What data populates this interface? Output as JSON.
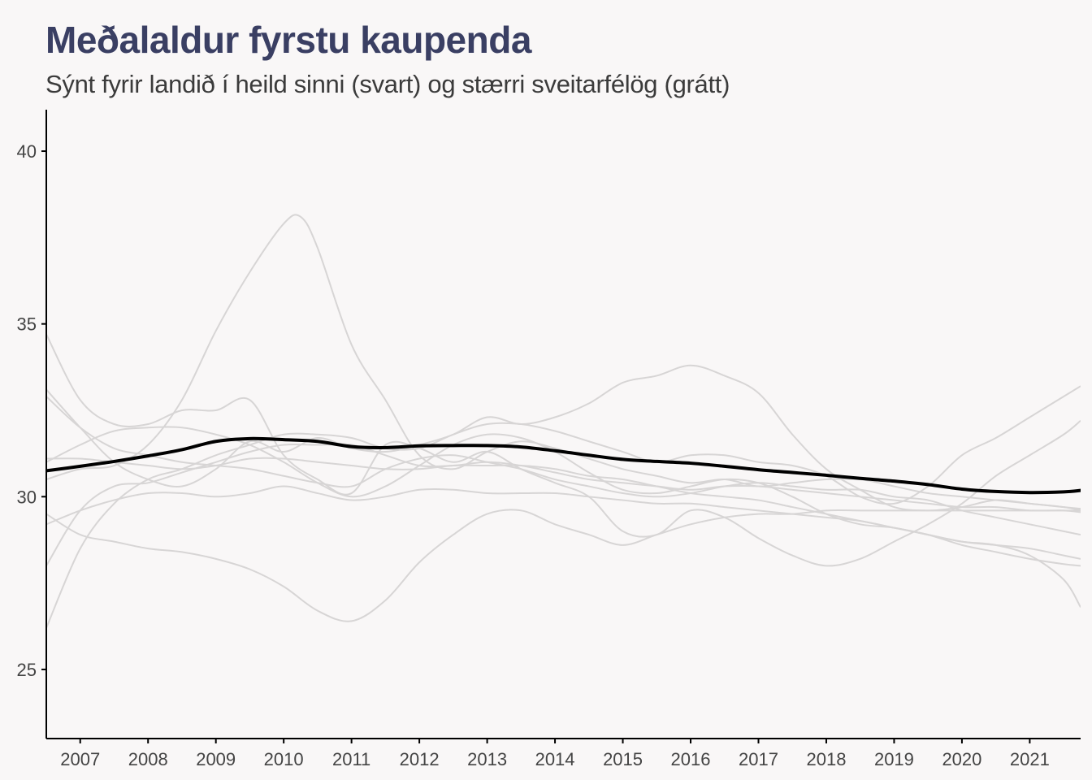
{
  "chart_data": {
    "type": "line",
    "title": "Meðalaldur fyrstu kaupenda",
    "subtitle": "Sýnt fyrir landið í heild sinni (svart) og stærri sveitarfélög (grátt)",
    "xlabel": "",
    "ylabel": "",
    "xlim": [
      2006.5,
      2021.75
    ],
    "ylim": [
      23,
      41.2
    ],
    "x_ticks": [
      "2007",
      "2008",
      "2009",
      "2010",
      "2011",
      "2012",
      "2013",
      "2014",
      "2015",
      "2016",
      "2017",
      "2018",
      "2019",
      "2020",
      "2021"
    ],
    "y_ticks": [
      "25",
      "30",
      "35",
      "40"
    ],
    "grid": false,
    "legend": "none",
    "colors": {
      "national": "#000000",
      "municipality": "#d7d5d5",
      "title": "#3a3f63",
      "background": "#f9f7f7"
    },
    "national": {
      "x": [
        2006.5,
        2007,
        2007.5,
        2008,
        2008.5,
        2009,
        2009.5,
        2010,
        2010.5,
        2011,
        2011.5,
        2012,
        2012.5,
        2013,
        2013.5,
        2014,
        2014.5,
        2015,
        2015.5,
        2016,
        2016.5,
        2017,
        2017.5,
        2018,
        2018.5,
        2019,
        2019.5,
        2020,
        2020.5,
        2021,
        2021.5,
        2021.75
      ],
      "y": [
        30.75,
        30.88,
        31.02,
        31.18,
        31.36,
        31.6,
        31.68,
        31.65,
        31.6,
        31.45,
        31.42,
        31.47,
        31.48,
        31.48,
        31.44,
        31.33,
        31.2,
        31.08,
        31.02,
        30.97,
        30.88,
        30.78,
        30.7,
        30.62,
        30.53,
        30.45,
        30.35,
        30.22,
        30.15,
        30.12,
        30.14,
        30.18
      ]
    },
    "municipalities": [
      {
        "x": [
          2006.5,
          2007,
          2007.5,
          2008,
          2008.5,
          2009,
          2009.5,
          2010,
          2010.25,
          2010.5,
          2011,
          2011.5,
          2012,
          2012.5,
          2013,
          2013.5,
          2014,
          2014.5,
          2015,
          2015.5,
          2016,
          2016.5,
          2017,
          2017.5,
          2018,
          2018.5,
          2019,
          2019.5,
          2020,
          2020.5,
          2021,
          2021.5,
          2021.75
        ],
        "y": [
          30.5,
          30.8,
          30.9,
          31.5,
          32.8,
          34.8,
          36.5,
          37.9,
          38.1,
          37.2,
          34.4,
          32.8,
          31.2,
          30.8,
          31.3,
          31.6,
          31.4,
          31.1,
          30.8,
          30.6,
          30.4,
          30.5,
          30.3,
          30.4,
          30.5,
          30.5,
          30.3,
          30.1,
          30.0,
          29.9,
          29.8,
          29.7,
          29.65
        ]
      },
      {
        "x": [
          2006.5,
          2007,
          2007.5,
          2008,
          2008.5,
          2009,
          2009.5,
          2010,
          2010.5,
          2011,
          2011.5,
          2012,
          2012.5,
          2013,
          2013.5,
          2014,
          2014.5,
          2015,
          2015.5,
          2016,
          2016.5,
          2017,
          2017.5,
          2018,
          2018.5,
          2019,
          2019.5,
          2020,
          2020.5,
          2021,
          2021.5,
          2021.75
        ],
        "y": [
          34.7,
          32.8,
          32.1,
          32.1,
          32.5,
          32.5,
          32.8,
          31.2,
          30.5,
          30.1,
          31.5,
          31.4,
          31.0,
          31.3,
          30.8,
          30.4,
          30.0,
          29.0,
          28.9,
          29.6,
          29.4,
          28.8,
          28.3,
          28.0,
          28.2,
          28.7,
          29.2,
          29.8,
          30.6,
          31.2,
          31.8,
          32.2
        ]
      },
      {
        "x": [
          2006.5,
          2007,
          2007.5,
          2008,
          2008.5,
          2009,
          2009.5,
          2010,
          2010.5,
          2011,
          2011.5,
          2012,
          2012.5,
          2013,
          2013.5,
          2014,
          2014.5,
          2015,
          2015.5,
          2016,
          2016.5,
          2017,
          2017.5,
          2018,
          2018.5,
          2019,
          2019.5,
          2020,
          2020.5,
          2021,
          2021.5,
          2021.75
        ],
        "y": [
          26.2,
          28.5,
          29.8,
          30.5,
          30.8,
          31.2,
          31.5,
          31.8,
          31.8,
          31.7,
          31.4,
          31.4,
          31.8,
          32.1,
          32.1,
          31.9,
          31.6,
          31.3,
          31.0,
          31.2,
          31.2,
          31.0,
          30.9,
          30.6,
          30.0,
          29.8,
          30.3,
          31.2,
          31.7,
          32.3,
          32.9,
          33.2
        ]
      },
      {
        "x": [
          2006.5,
          2007,
          2007.5,
          2008,
          2008.5,
          2009,
          2009.5,
          2010,
          2010.5,
          2011,
          2011.5,
          2012,
          2012.5,
          2013,
          2013.5,
          2014,
          2014.5,
          2015,
          2015.5,
          2016,
          2016.5,
          2017,
          2017.5,
          2018,
          2018.5,
          2019,
          2019.5,
          2020,
          2020.5,
          2021,
          2021.5,
          2021.75
        ],
        "y": [
          33.1,
          32.0,
          31.0,
          30.5,
          30.3,
          30.8,
          31.6,
          31.3,
          31.7,
          31.4,
          31.3,
          31.5,
          31.8,
          32.3,
          32.1,
          32.3,
          32.7,
          33.3,
          33.5,
          33.8,
          33.5,
          33.0,
          31.8,
          30.8,
          30.2,
          29.7,
          29.6,
          29.7,
          29.9,
          29.8,
          29.7,
          29.6
        ]
      },
      {
        "x": [
          2006.5,
          2007,
          2007.5,
          2008,
          2008.5,
          2009,
          2009.5,
          2010,
          2010.5,
          2011,
          2011.5,
          2012,
          2012.5,
          2013,
          2013.5,
          2014,
          2014.5,
          2015,
          2015.5,
          2016,
          2016.5,
          2017,
          2017.5,
          2018,
          2018.5,
          2019,
          2019.5,
          2020,
          2020.5,
          2021,
          2021.5,
          2021.75
        ],
        "y": [
          28.0,
          29.6,
          30.3,
          30.4,
          30.7,
          31.0,
          31.3,
          31.5,
          31.5,
          31.5,
          31.2,
          30.9,
          30.9,
          31.0,
          30.9,
          30.7,
          30.5,
          30.4,
          30.3,
          30.2,
          30.3,
          30.3,
          30.2,
          30.1,
          30.0,
          29.9,
          29.8,
          29.7,
          29.7,
          29.6,
          29.6,
          29.55
        ]
      },
      {
        "x": [
          2006.5,
          2007,
          2007.5,
          2008,
          2008.5,
          2009,
          2009.5,
          2010,
          2010.5,
          2011,
          2011.5,
          2012,
          2012.5,
          2013,
          2013.5,
          2014,
          2014.5,
          2015,
          2015.5,
          2016,
          2016.5,
          2017,
          2017.5,
          2018,
          2018.5,
          2019,
          2019.5,
          2020,
          2020.5,
          2021,
          2021.5,
          2021.75
        ],
        "y": [
          29.5,
          28.9,
          28.7,
          28.5,
          28.4,
          28.2,
          27.9,
          27.4,
          26.7,
          26.4,
          27.0,
          28.1,
          28.9,
          29.5,
          29.6,
          29.2,
          28.9,
          28.6,
          28.9,
          29.2,
          29.4,
          29.5,
          29.5,
          29.6,
          29.6,
          29.6,
          29.6,
          29.6,
          29.6,
          29.6,
          29.6,
          29.6
        ]
      },
      {
        "x": [
          2006.5,
          2007,
          2007.5,
          2008,
          2008.5,
          2009,
          2009.5,
          2010,
          2010.5,
          2011,
          2011.5,
          2012,
          2012.5,
          2013,
          2013.5,
          2014,
          2014.5,
          2015,
          2015.5,
          2016,
          2016.5,
          2017,
          2017.5,
          2018,
          2018.5,
          2019,
          2019.5,
          2020,
          2020.5,
          2021,
          2021.5,
          2021.75
        ],
        "y": [
          29.2,
          29.6,
          29.9,
          30.1,
          30.1,
          30.0,
          30.1,
          30.3,
          30.1,
          29.9,
          30.0,
          30.2,
          30.2,
          30.1,
          30.1,
          30.1,
          30.0,
          29.9,
          29.8,
          29.8,
          29.7,
          29.6,
          29.5,
          29.4,
          29.3,
          29.1,
          28.9,
          28.7,
          28.6,
          28.5,
          28.3,
          28.2
        ]
      },
      {
        "x": [
          2006.5,
          2007,
          2007.5,
          2008,
          2008.5,
          2009,
          2009.5,
          2010,
          2010.5,
          2011,
          2011.5,
          2012,
          2012.5,
          2013,
          2013.5,
          2014,
          2014.5,
          2015,
          2015.5,
          2016,
          2016.5,
          2017,
          2017.5,
          2018,
          2018.5,
          2019,
          2019.5,
          2020,
          2020.5,
          2021,
          2021.5,
          2021.75
        ],
        "y": [
          32.9,
          32.0,
          31.4,
          31.2,
          31.0,
          30.9,
          30.8,
          30.6,
          30.4,
          30.3,
          30.8,
          31.1,
          31.2,
          31.0,
          30.8,
          30.5,
          30.3,
          30.1,
          30.0,
          30.1,
          30.3,
          30.4,
          30.3,
          30.2,
          30.2,
          30.0,
          29.9,
          29.6,
          29.4,
          29.2,
          29.0,
          28.9
        ]
      },
      {
        "x": [
          2006.5,
          2007,
          2007.5,
          2008,
          2008.5,
          2009,
          2009.5,
          2010,
          2010.5,
          2011,
          2011.5,
          2012,
          2012.5,
          2013,
          2013.5,
          2014,
          2014.5,
          2015,
          2015.5,
          2016,
          2016.5,
          2017,
          2017.5,
          2018,
          2018.5,
          2019,
          2019.5,
          2020,
          2020.5,
          2021,
          2021.5,
          2021.75
        ],
        "y": [
          31.0,
          31.5,
          31.9,
          32.0,
          32.0,
          31.8,
          31.5,
          31.0,
          30.4,
          30.0,
          30.3,
          30.9,
          31.5,
          31.8,
          31.7,
          31.3,
          30.7,
          30.2,
          30.1,
          30.3,
          30.5,
          30.4,
          30.0,
          29.5,
          29.2,
          29.1,
          28.9,
          28.7,
          28.6,
          28.3,
          27.6,
          26.8
        ]
      },
      {
        "x": [
          2006.5,
          2007,
          2007.5,
          2008,
          2008.5,
          2009,
          2009.5,
          2010,
          2010.5,
          2011,
          2011.5,
          2012,
          2012.5,
          2013,
          2013.5,
          2014,
          2014.5,
          2015,
          2015.5,
          2016,
          2016.5,
          2017,
          2017.5,
          2018,
          2018.5,
          2019,
          2019.5,
          2020,
          2020.5,
          2021,
          2021.5,
          2021.75
        ],
        "y": [
          31.1,
          31.1,
          31.0,
          30.9,
          30.8,
          30.9,
          31.1,
          31.1,
          31.0,
          30.9,
          30.8,
          30.8,
          30.9,
          30.9,
          30.9,
          30.8,
          30.6,
          30.5,
          30.3,
          30.1,
          30.0,
          29.9,
          29.7,
          29.5,
          29.3,
          29.1,
          28.9,
          28.6,
          28.4,
          28.2,
          28.05,
          28.0
        ]
      }
    ]
  }
}
